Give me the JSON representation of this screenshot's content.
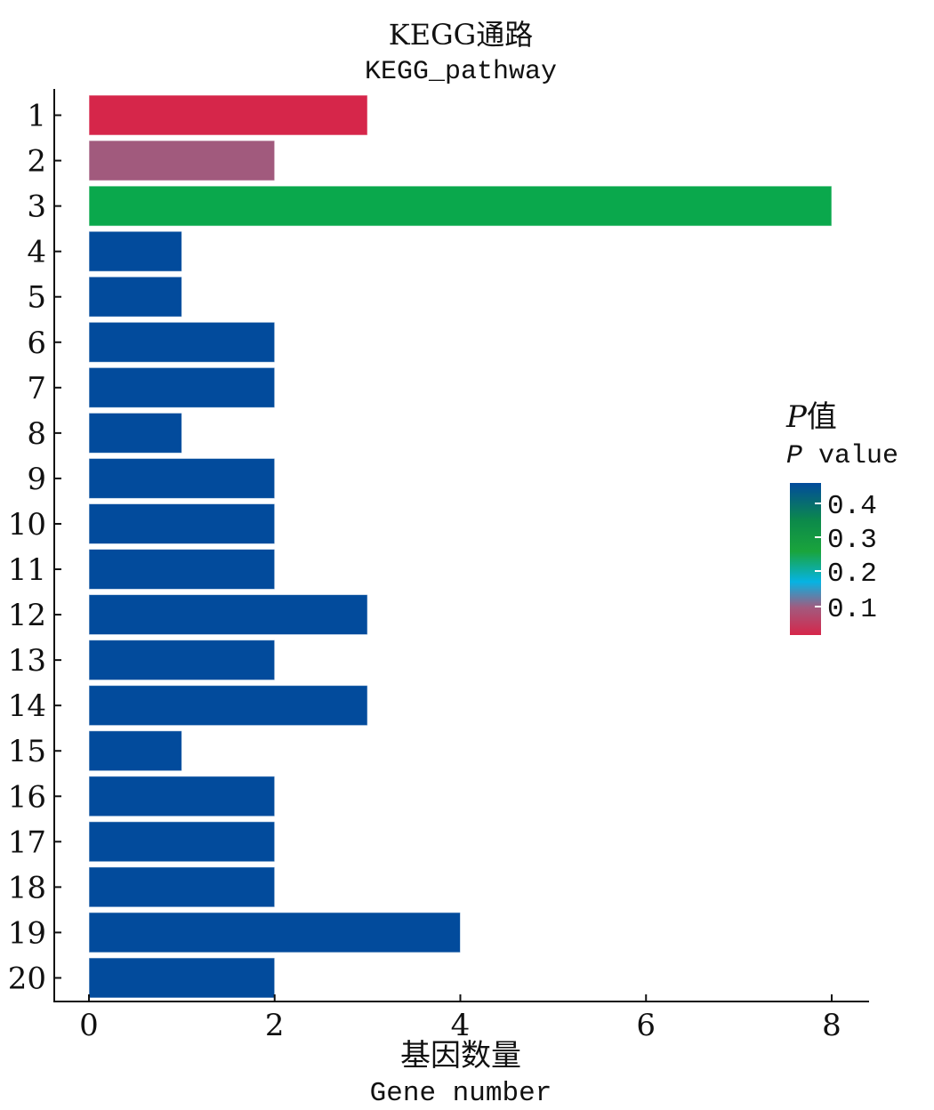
{
  "chart_data": {
    "type": "bar",
    "orientation": "horizontal",
    "title": "KEGG通路",
    "subtitle": "KEGG_pathway",
    "xlabel": "基因数量",
    "xlabel_en": "Gene number",
    "ylabel": "",
    "categories": [
      "1",
      "2",
      "3",
      "4",
      "5",
      "6",
      "7",
      "8",
      "9",
      "10",
      "11",
      "12",
      "13",
      "14",
      "15",
      "16",
      "17",
      "18",
      "19",
      "20"
    ],
    "values": [
      3,
      2,
      8,
      1,
      1,
      2,
      2,
      1,
      2,
      2,
      2,
      3,
      2,
      3,
      1,
      2,
      2,
      2,
      4,
      2
    ],
    "bar_colors": [
      "#d6264a",
      "#a15a7d",
      "#0aa84c",
      "#024b9c",
      "#024b9c",
      "#024b9c",
      "#024b9c",
      "#024b9c",
      "#024b9c",
      "#024b9c",
      "#024b9c",
      "#024b9c",
      "#024b9c",
      "#024b9c",
      "#024b9c",
      "#024b9c",
      "#024b9c",
      "#024b9c",
      "#024b9c",
      "#024b9c"
    ],
    "xlim": [
      -0.4,
      8.4
    ],
    "xticks": [
      "0",
      "2",
      "4",
      "6",
      "8"
    ],
    "xtick_values": [
      0,
      2,
      4,
      6,
      8
    ],
    "grid": false,
    "legend": {
      "title": "P值",
      "title_en": "P value",
      "title_italic_letter": "P",
      "placement": "right",
      "ticks": [
        "0.4",
        "0.3",
        "0.2",
        "0.1"
      ],
      "colors_top_to_bottom": [
        "#024b9c",
        "#0c8a4a",
        "#1aa43c",
        "#06b3e3",
        "#a25a7e",
        "#d6264a"
      ]
    }
  }
}
